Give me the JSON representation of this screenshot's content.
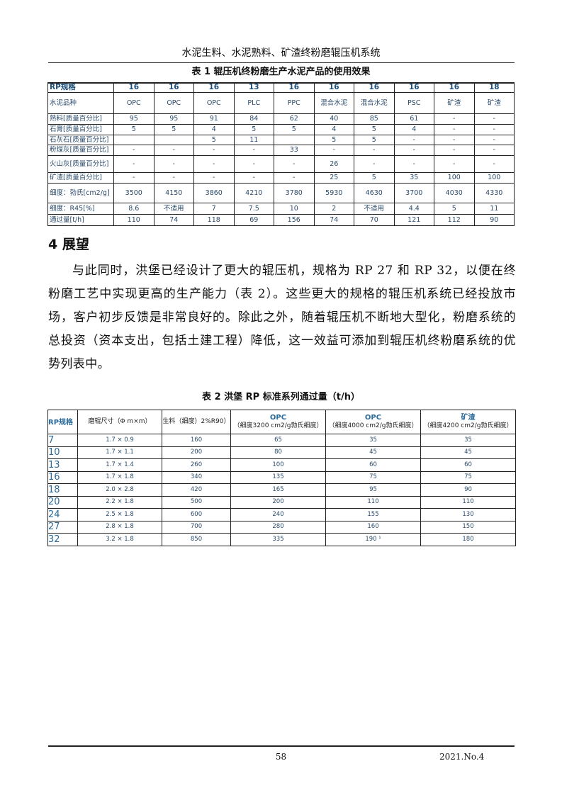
{
  "header": {
    "running_title": "水泥生料、水泥熟料、矿渣终粉磨辊压机系统"
  },
  "table1": {
    "caption": "表 1  辊压机终粉磨生产水泥产品的使用效果",
    "rows": [
      [
        "RP规格",
        "16",
        "16",
        "16",
        "13",
        "16",
        "16",
        "16",
        "16",
        "16",
        "18"
      ],
      [
        "水泥品种",
        "OPC",
        "OPC",
        "OPC",
        "PLC",
        "PPC",
        "混合水泥",
        "混合水泥",
        "PSC",
        "矿渣",
        "矿渣"
      ],
      [
        "熟料[质量百分比]",
        "95",
        "95",
        "91",
        "84",
        "62",
        "40",
        "85",
        "61",
        "-",
        "-"
      ],
      [
        "石膏[质量百分比]",
        "5",
        "5",
        "4",
        "5",
        "5",
        "4",
        "5",
        "4",
        "-",
        "-"
      ],
      [
        "石灰石[质量百分比]",
        "",
        "",
        "5",
        "11",
        "",
        "5",
        "5",
        "-",
        "-",
        "-"
      ],
      [
        "粉煤灰[质量百分比]",
        "-",
        "-",
        "-",
        "-",
        "33",
        "-",
        "-",
        "-",
        "-",
        "-"
      ],
      [
        "火山灰[质量百分比]",
        "-",
        "-",
        "-",
        "-",
        "-",
        "26",
        "-",
        "-",
        "-",
        "-"
      ],
      [
        "矿渣[质量百分比]",
        "-",
        "-",
        "-",
        "-",
        "-",
        "25",
        "5",
        "35",
        "100",
        "100"
      ],
      [
        "细度：勃氏[cm2/g]",
        "3500",
        "4150",
        "3860",
        "4210",
        "3780",
        "5930",
        "4630",
        "3700",
        "4030",
        "4330"
      ],
      [
        "细度：R45[%]",
        "8.6",
        "不适用",
        "7",
        "7.5",
        "10",
        "2",
        "不适用",
        "4.4",
        "5",
        "11"
      ],
      [
        "通过量[t/h]",
        "110",
        "74",
        "118",
        "69",
        "156",
        "74",
        "70",
        "121",
        "112",
        "90"
      ]
    ]
  },
  "section": {
    "heading": "4  展望",
    "paragraph": "与此同时，洪堡已经设计了更大的辊压机，规格为 RP 27 和 RP 32，以便在终粉磨工艺中实现更高的生产能力（表 2）。这些更大的规格的辊压机系统已经投放市场，客户初步反馈是非常良好的。除此之外，随着辊压机不断地大型化，粉磨系统的总投资（资本支出，包括土建工程）降低，这一效益可添加到辊压机终粉磨系统的优势列表中。"
  },
  "table2": {
    "caption": "表 2  洪堡 RP 标准系列通过量（t/h）",
    "headers": [
      {
        "title": "RP规格",
        "sub": ""
      },
      {
        "title": "",
        "sub": "磨辊尺寸（Φ m×m）"
      },
      {
        "title": "",
        "sub": "生料（细度）2%R90）"
      },
      {
        "title": "OPC",
        "sub": "（细度3200 cm2/g勃氏细度）"
      },
      {
        "title": "OPC",
        "sub": "（细度4000 cm2/g勃氏细度）"
      },
      {
        "title": "矿渣",
        "sub": "（细度4200 cm2/g勃氏细度）"
      }
    ],
    "rows": [
      [
        "7",
        "1.7 × 0.9",
        "160",
        "65",
        "35",
        "35"
      ],
      [
        "10",
        "1.7 × 1.1",
        "200",
        "80",
        "45",
        "45"
      ],
      [
        "13",
        "1.7 × 1.4",
        "260",
        "100",
        "60",
        "60"
      ],
      [
        "16",
        "1.7 × 1.8",
        "340",
        "135",
        "75",
        "75"
      ],
      [
        "18",
        "2.0 × 2.8",
        "420",
        "165",
        "95",
        "90"
      ],
      [
        "20",
        "2.2 × 1.8",
        "500",
        "200",
        "110",
        "110"
      ],
      [
        "24",
        "2.5 × 1.8",
        "600",
        "240",
        "155",
        "130"
      ],
      [
        "27",
        "2.8 × 1.8",
        "700",
        "280",
        "160",
        "150"
      ],
      [
        "32",
        "3.2 × 1.8",
        "850",
        "335",
        "190 ¹",
        "180"
      ]
    ]
  },
  "footer": {
    "page_number": "58",
    "issue": "2021.No.4"
  }
}
